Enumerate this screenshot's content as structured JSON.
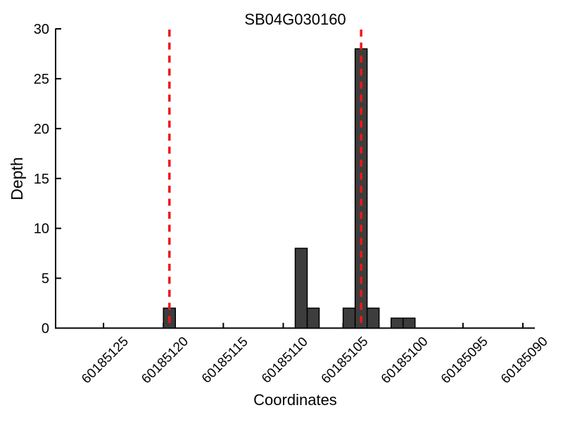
{
  "chart_data": {
    "type": "bar",
    "title": "SB04G030160",
    "xlabel": "Coordinates",
    "ylabel": "Depth",
    "x_axis_reversed": true,
    "xlim": [
      60185129,
      60185089
    ],
    "ylim": [
      0,
      30
    ],
    "x_ticks": [
      60185125,
      60185120,
      60185115,
      60185110,
      60185105,
      60185100,
      60185095,
      60185090
    ],
    "y_ticks": [
      0,
      5,
      10,
      15,
      20,
      25,
      30
    ],
    "bin_width": 1,
    "bars": [
      {
        "center": 60185119.5,
        "count": 2
      },
      {
        "center": 60185108.5,
        "count": 8
      },
      {
        "center": 60185107.5,
        "count": 2
      },
      {
        "center": 60185104.5,
        "count": 2
      },
      {
        "center": 60185103.5,
        "count": 28
      },
      {
        "center": 60185102.5,
        "count": 2
      },
      {
        "center": 60185100.5,
        "count": 1
      },
      {
        "center": 60185099.5,
        "count": 1
      }
    ],
    "vlines": [
      60185119.5,
      60185103.5
    ],
    "grid": false,
    "legend": null,
    "colors": {
      "bar_fill": "#3d3d3d",
      "bar_edge": "#000000",
      "vline": "#f21616",
      "axis": "#000000",
      "background": "#ffffff"
    }
  }
}
